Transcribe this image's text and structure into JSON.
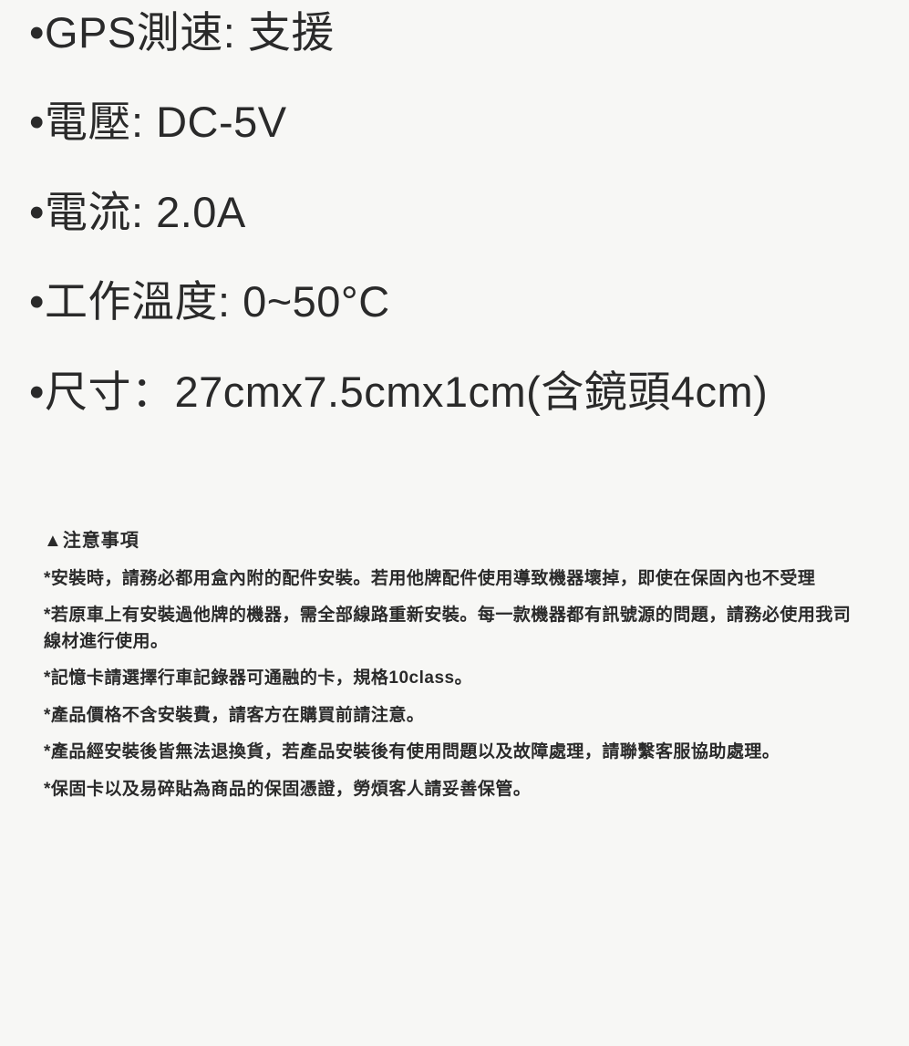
{
  "specs": [
    "•GPS測速: 支援",
    "•電壓: DC-5V",
    "•電流: 2.0A",
    "•工作溫度: 0~50°C",
    "•尺寸：27cmx7.5cmx1cm(含鏡頭4cm)"
  ],
  "notes": {
    "title": "▲注意事項",
    "items": [
      "*安裝時，請務必都用盒內附的配件安裝。若用他牌配件使用導致機器壞掉，即使在保固內也不受理",
      "*若原車上有安裝過他牌的機器，需全部線路重新安裝。每一款機器都有訊號源的問題，請務必使用我司線材進行使用。",
      "*記憶卡請選擇行車記錄器可通融的卡，規格10class。",
      "*產品價格不含安裝費，請客方在購買前請注意。",
      "*產品經安裝後皆無法退換貨，若產品安裝後有使用問題以及故障處理，請聯繫客服協助處理。",
      "*保固卡以及易碎貼為商品的保固憑證，勞煩客人請妥善保管。"
    ]
  },
  "colors": {
    "background": "#f7f7f5",
    "text": "#2a2a2a"
  },
  "typography": {
    "spec_fontsize": 47,
    "notes_title_fontsize": 20,
    "notes_item_fontsize": 19,
    "font_family": "Microsoft JhengHei"
  }
}
